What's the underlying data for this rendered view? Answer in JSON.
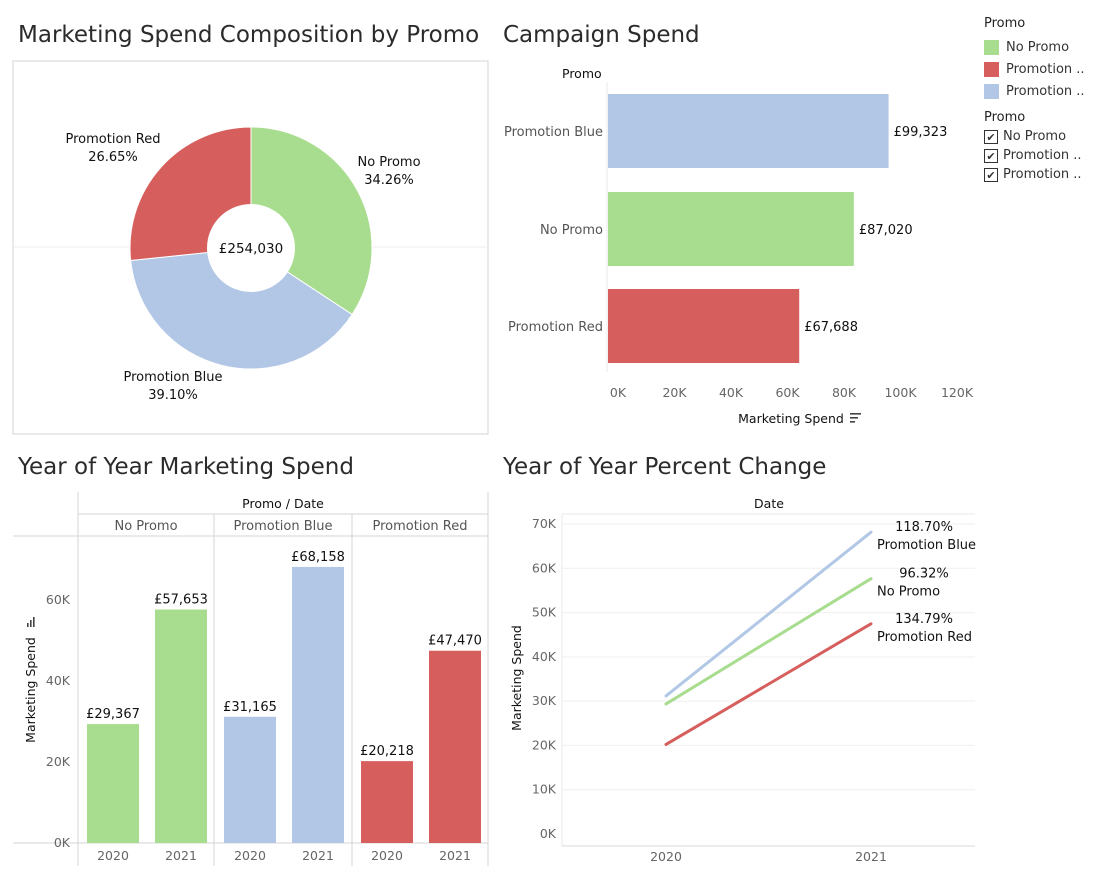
{
  "titles": {
    "donut": "Marketing Spend Composition by Promo",
    "campaign": "Campaign Spend",
    "yoy_spend": "Year of Year Marketing Spend",
    "yoy_pct": "Year of Year Percent Change"
  },
  "colors": {
    "no_promo": "#a8dc8e",
    "promotion_blue": "#b2c7e6",
    "promotion_red": "#d65f5d"
  },
  "legend": {
    "color_title": "Promo",
    "color_items": [
      {
        "label": "No Promo",
        "color": "#a8dc8e"
      },
      {
        "label": "Promotion ..",
        "color": "#d65f5d"
      },
      {
        "label": "Promotion ..",
        "color": "#b2c7e6"
      }
    ],
    "filter_title": "Promo",
    "filter_items": [
      {
        "label": "No Promo",
        "checked": true
      },
      {
        "label": "Promotion ..",
        "checked": true
      },
      {
        "label": "Promotion ..",
        "checked": true
      }
    ],
    "check_glyph": "✔"
  },
  "chart_data": [
    {
      "type": "pie",
      "title": "Marketing Spend Composition by Promo",
      "center_label": "£254,030",
      "slices": [
        {
          "label": "No Promo",
          "percent_label": "34.26%",
          "value": 34.26,
          "color": "#a8dc8e"
        },
        {
          "label": "Promotion Blue",
          "percent_label": "39.10%",
          "value": 39.1,
          "color": "#b2c7e6"
        },
        {
          "label": "Promotion Red",
          "percent_label": "26.65%",
          "value": 26.65,
          "color": "#d65f5d"
        }
      ]
    },
    {
      "type": "bar",
      "orientation": "horizontal",
      "title": "Campaign Spend",
      "category_header": "Promo",
      "xlabel": "Marketing Spend",
      "xlim": [
        0,
        120000
      ],
      "ticks": [
        0,
        20000,
        40000,
        60000,
        80000,
        100000,
        120000
      ],
      "tick_labels": [
        "0K",
        "20K",
        "40K",
        "60K",
        "80K",
        "100K",
        "120K"
      ],
      "categories": [
        "Promotion Blue",
        "No Promo",
        "Promotion Red"
      ],
      "values": [
        99323,
        87020,
        67688
      ],
      "data_labels": [
        "£99,323",
        "£87,020",
        "£67,688"
      ],
      "colors": [
        "#b2c7e6",
        "#a8dc8e",
        "#d65f5d"
      ]
    },
    {
      "type": "bar",
      "title": "Year of Year Marketing Spend",
      "header": "Promo  /  Date",
      "ylabel": "Marketing Spend",
      "ylim": [
        0,
        70000
      ],
      "ticks": [
        0,
        20000,
        40000,
        60000
      ],
      "tick_labels": [
        "0K",
        "20K",
        "40K",
        "60K"
      ],
      "groups": [
        {
          "name": "No Promo",
          "color": "#a8dc8e",
          "x": [
            "2020",
            "2021"
          ],
          "values": [
            29367,
            57653
          ],
          "data_labels": [
            "£29,367",
            "£57,653"
          ]
        },
        {
          "name": "Promotion Blue",
          "color": "#b2c7e6",
          "x": [
            "2020",
            "2021"
          ],
          "values": [
            31165,
            68158
          ],
          "data_labels": [
            "£31,165",
            "£68,158"
          ]
        },
        {
          "name": "Promotion Red",
          "color": "#d65f5d",
          "x": [
            "2020",
            "2021"
          ],
          "values": [
            20218,
            47470
          ],
          "data_labels": [
            "£20,218",
            "£47,470"
          ]
        }
      ]
    },
    {
      "type": "line",
      "title": "Year of Year Percent Change",
      "xlabel": "Date",
      "ylabel": "Marketing Spend",
      "x": [
        "2020",
        "2021"
      ],
      "ylim": [
        0,
        70000
      ],
      "ticks": [
        0,
        10000,
        20000,
        30000,
        40000,
        50000,
        60000,
        70000
      ],
      "tick_labels": [
        "0K",
        "10K",
        "20K",
        "30K",
        "40K",
        "50K",
        "60K",
        "70K"
      ],
      "series": [
        {
          "name": "Promotion Blue",
          "values": [
            31165,
            68158
          ],
          "change_label": "118.70%",
          "color": "#b2c7e6"
        },
        {
          "name": "No Promo",
          "values": [
            29367,
            57653
          ],
          "change_label": "96.32%",
          "color": "#a8dc8e"
        },
        {
          "name": "Promotion Red",
          "values": [
            20218,
            47470
          ],
          "change_label": "134.79%",
          "color": "#d65f5d"
        }
      ]
    }
  ]
}
